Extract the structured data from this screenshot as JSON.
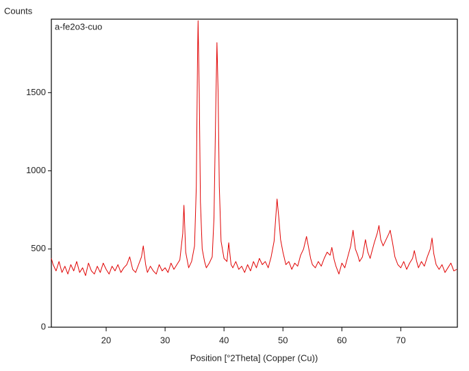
{
  "chart_data": {
    "type": "line",
    "y_label": "Counts",
    "x_label": "Position [°2Theta] (Copper (Cu))",
    "x": [
      10.7,
      11,
      11.5,
      12,
      12.5,
      13,
      13.5,
      14,
      14.5,
      15,
      15.5,
      16,
      16.5,
      17,
      17.5,
      18,
      18.5,
      19,
      19.5,
      20,
      20.5,
      21,
      21.5,
      22,
      22.5,
      23,
      23.5,
      24,
      24.5,
      25,
      25.5,
      26,
      26.3,
      26.7,
      27,
      27.5,
      28,
      28.5,
      29,
      29.5,
      30,
      30.5,
      31,
      31.5,
      32,
      32.5,
      33,
      33.2,
      33.5,
      34,
      34.5,
      35,
      35.3,
      35.5,
      35.6,
      35.8,
      36,
      36.3,
      36.7,
      37,
      37.5,
      38,
      38.3,
      38.6,
      38.8,
      39,
      39.2,
      39.5,
      40,
      40.5,
      40.8,
      41.2,
      41.5,
      42,
      42.5,
      43,
      43.5,
      44,
      44.5,
      45,
      45.5,
      46,
      46.5,
      47,
      47.5,
      48,
      48.5,
      49,
      49.3,
      49.6,
      50,
      50.5,
      51,
      51.5,
      52,
      52.5,
      53,
      53.5,
      54,
      54.3,
      54.7,
      55,
      55.5,
      56,
      56.5,
      57,
      57.5,
      58,
      58.3,
      58.7,
      59,
      59.5,
      60,
      60.5,
      61,
      61.5,
      61.9,
      62.3,
      62.7,
      63,
      63.5,
      64,
      64.4,
      64.8,
      65,
      65.5,
      66,
      66.3,
      66.6,
      67,
      67.5,
      68,
      68.2,
      68.6,
      69,
      69.5,
      70,
      70.5,
      71,
      71.5,
      72,
      72.3,
      72.7,
      73,
      73.5,
      74,
      74.5,
      75,
      75.3,
      75.6,
      76,
      76.5,
      77,
      77.5,
      78,
      78.5,
      79,
      79.5
    ],
    "series": [
      {
        "name": "a-fe2o3-cuo",
        "color": "#e00000",
        "values": [
          440,
          400,
          360,
          420,
          350,
          390,
          340,
          400,
          360,
          420,
          350,
          380,
          330,
          410,
          360,
          340,
          390,
          350,
          410,
          370,
          340,
          390,
          360,
          400,
          350,
          380,
          400,
          450,
          370,
          350,
          400,
          450,
          520,
          400,
          350,
          390,
          360,
          340,
          400,
          360,
          380,
          350,
          410,
          370,
          400,
          430,
          600,
          780,
          480,
          380,
          420,
          520,
          900,
          1700,
          1960,
          1500,
          800,
          500,
          420,
          380,
          410,
          450,
          700,
          1400,
          1820,
          1500,
          900,
          550,
          440,
          420,
          540,
          400,
          380,
          420,
          370,
          390,
          350,
          400,
          360,
          420,
          380,
          440,
          400,
          420,
          380,
          450,
          550,
          820,
          700,
          560,
          480,
          400,
          420,
          370,
          410,
          390,
          460,
          500,
          580,
          520,
          440,
          400,
          380,
          420,
          390,
          440,
          480,
          460,
          510,
          430,
          390,
          340,
          410,
          380,
          450,
          520,
          620,
          500,
          460,
          420,
          450,
          560,
          480,
          440,
          470,
          540,
          600,
          650,
          560,
          520,
          560,
          600,
          620,
          540,
          450,
          400,
          380,
          420,
          370,
          410,
          440,
          490,
          420,
          380,
          420,
          390,
          450,
          500,
          570,
          470,
          400,
          370,
          400,
          350,
          380,
          410,
          360,
          370
        ]
      }
    ],
    "xlim": [
      10.7,
      79.6
    ],
    "ylim": [
      0,
      1970
    ],
    "xticks": [
      20,
      30,
      40,
      50,
      60,
      70
    ],
    "yticks": [
      0,
      500,
      1000,
      1500
    ]
  }
}
